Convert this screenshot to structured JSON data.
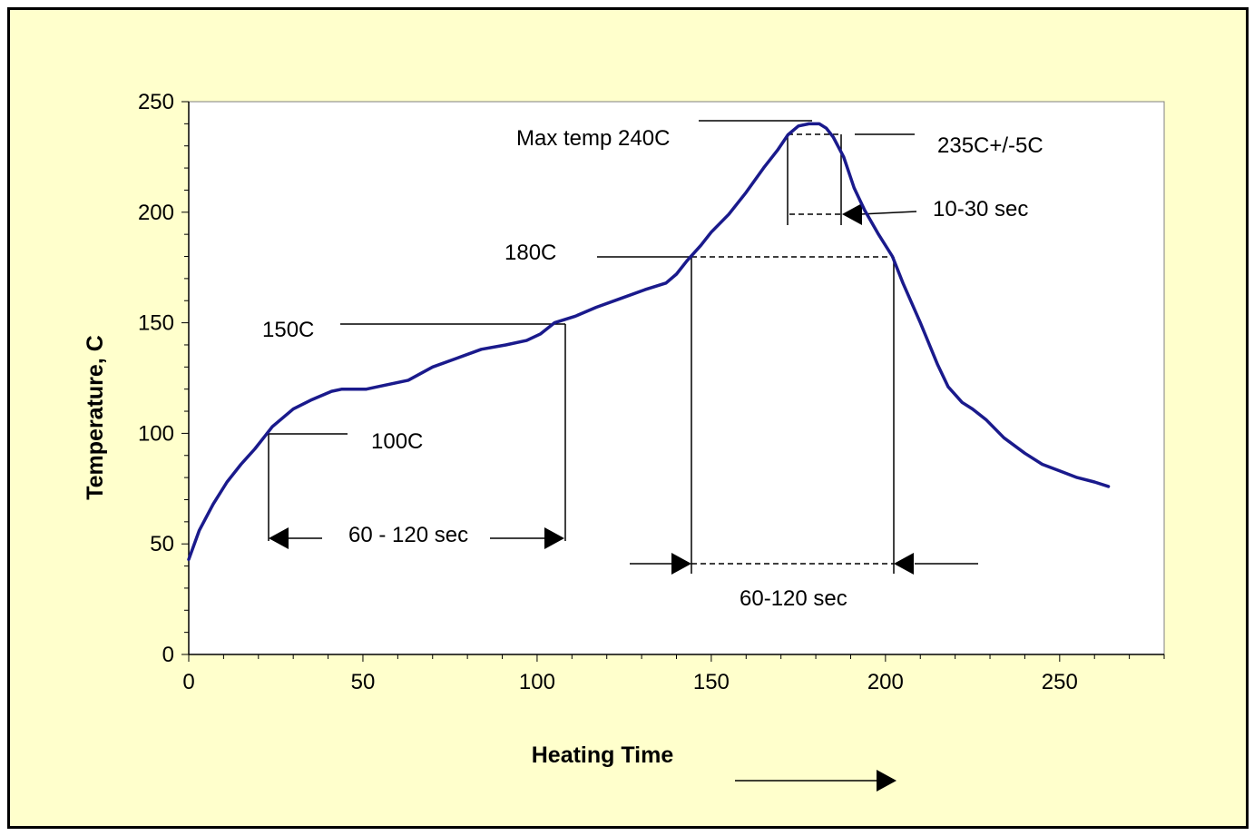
{
  "chart_data": {
    "type": "line",
    "title": "",
    "xlabel": "Heating Time",
    "ylabel": "Temperature, C",
    "xlim": [
      0,
      280
    ],
    "ylim": [
      0,
      250
    ],
    "xticks": [
      0,
      50,
      100,
      150,
      200,
      250
    ],
    "yticks": [
      0,
      50,
      100,
      150,
      200,
      250
    ],
    "grid": false,
    "line_color": "#1a1a8c",
    "background_color": "#ffffcc",
    "series": [
      {
        "x": [
          0,
          3,
          7,
          11,
          15,
          19,
          22,
          24,
          30,
          35,
          41,
          44,
          51,
          57,
          63,
          70,
          77,
          84,
          91,
          97,
          101,
          105,
          111,
          117,
          124,
          131,
          137,
          140,
          143,
          147,
          150,
          155,
          160,
          165,
          169,
          172,
          175,
          178,
          181,
          183,
          185,
          188,
          191,
          194,
          198,
          202,
          205,
          210,
          215,
          218,
          222,
          225,
          229,
          234,
          240,
          245,
          250,
          255,
          260,
          264
        ],
        "y": [
          43,
          56,
          68,
          78,
          86,
          93,
          99,
          103,
          111,
          115,
          119,
          120,
          120,
          122,
          124,
          130,
          134,
          138,
          140,
          142,
          145,
          150,
          153,
          157,
          161,
          165,
          168,
          172,
          178,
          185,
          191,
          199,
          209,
          220,
          228,
          235,
          239,
          240,
          240,
          238,
          234,
          225,
          211,
          201,
          190,
          180,
          168,
          150,
          131,
          121,
          114,
          111,
          106,
          98,
          91,
          86,
          83,
          80,
          78,
          76
        ]
      }
    ],
    "annotations": {
      "max_temp": "Max temp 240C",
      "peak_window": "235C+/-5C",
      "peak_time": "10-30 sec",
      "level_180": "180C",
      "level_150": "150C",
      "level_100": "100C",
      "preheat_time": "60 - 120 sec",
      "reflow_time": "60-120 sec"
    }
  }
}
